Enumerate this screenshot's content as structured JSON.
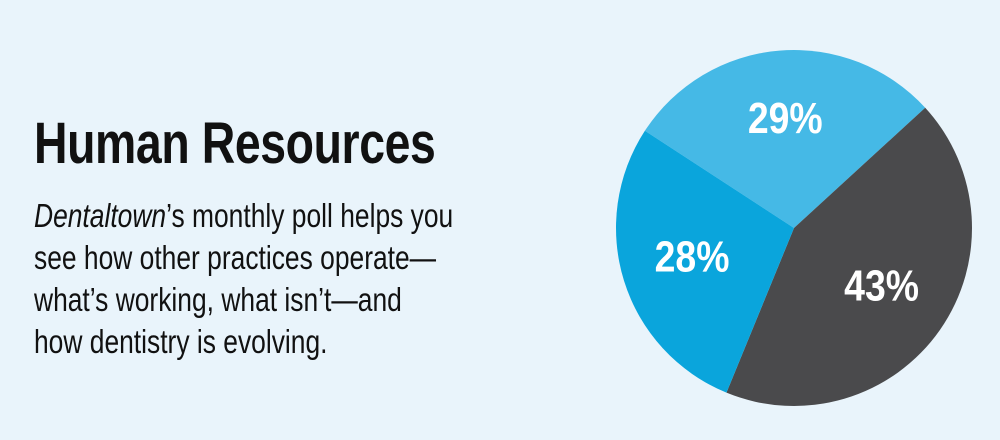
{
  "chart_data": {
    "type": "pie",
    "title": "Human Resources",
    "description_lines": [
      {
        "italic": "Dentaltown",
        "text": "’s monthly poll helps you"
      },
      "see how other practices operate—",
      "what’s working, what isn’t—and",
      "how dentistry is evolving."
    ],
    "values": [
      29,
      43,
      28
    ],
    "value_labels": [
      "29%",
      "43%",
      "28%"
    ],
    "colors": [
      "#45b9e6",
      "#4a4a4c",
      "#0aa5dc"
    ]
  }
}
